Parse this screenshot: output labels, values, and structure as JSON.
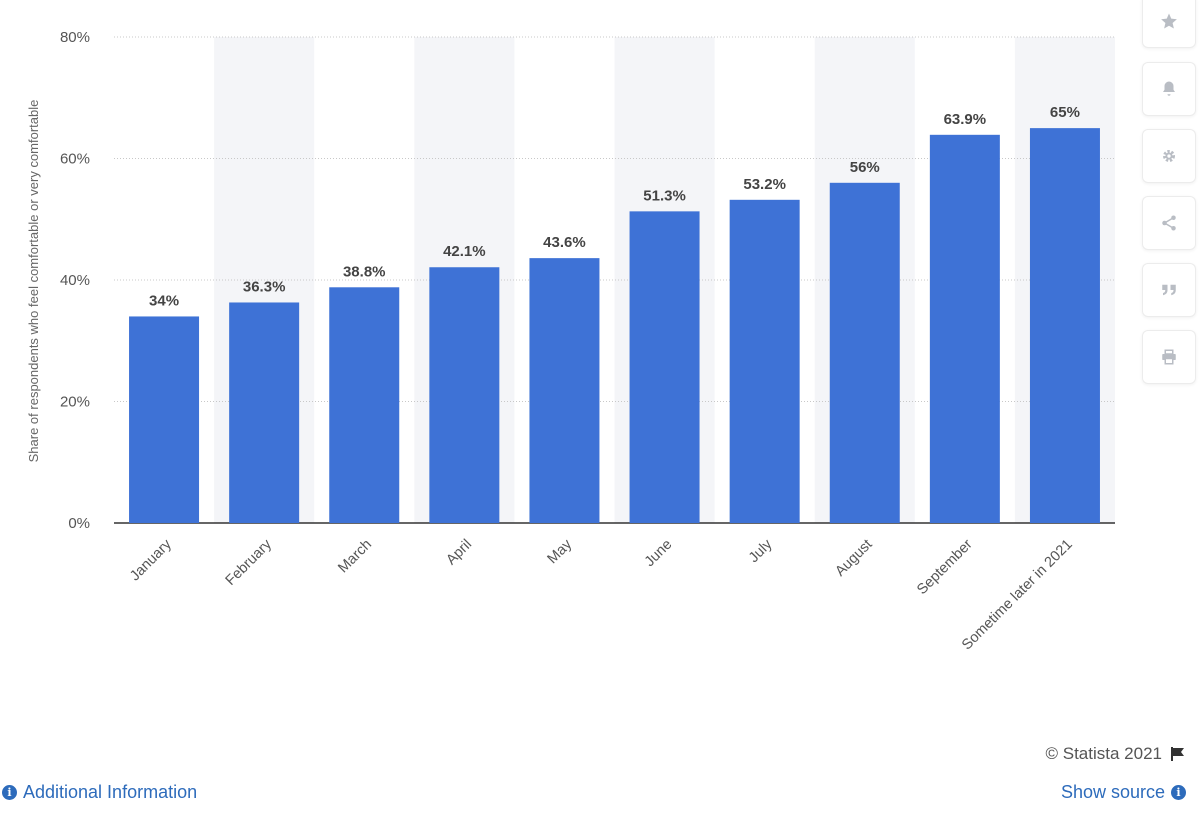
{
  "chart_data": {
    "type": "bar",
    "categories": [
      "January",
      "February",
      "March",
      "April",
      "May",
      "June",
      "July",
      "August",
      "September",
      "Sometime later in 2021"
    ],
    "values": [
      34,
      36.3,
      38.8,
      42.1,
      43.6,
      51.3,
      53.2,
      56,
      63.9,
      65
    ],
    "data_labels": [
      "34%",
      "36.3%",
      "38.8%",
      "42.1%",
      "43.6%",
      "51.3%",
      "53.2%",
      "56%",
      "63.9%",
      "65%"
    ],
    "ylabel": "Share of respondents who feel comfortable or very comfortable",
    "ylim": [
      0,
      80
    ],
    "yticks": [
      0,
      20,
      40,
      60,
      80
    ],
    "ytick_labels": [
      "0%",
      "20%",
      "40%",
      "60%",
      "80%"
    ],
    "grid": true,
    "bar_color": "#3e72d6",
    "band_color": "#f4f5f8"
  },
  "toolbar": {
    "items": [
      {
        "icon": "star-icon",
        "name": "favorite-button"
      },
      {
        "icon": "bell-icon",
        "name": "notification-button"
      },
      {
        "icon": "gear-icon",
        "name": "settings-button"
      },
      {
        "icon": "share-icon",
        "name": "share-button"
      },
      {
        "icon": "quote-icon",
        "name": "cite-button"
      },
      {
        "icon": "print-icon",
        "name": "print-button"
      }
    ]
  },
  "footer": {
    "credit": "© Statista 2021",
    "additional_info": "Additional Information",
    "show_source": "Show source"
  }
}
